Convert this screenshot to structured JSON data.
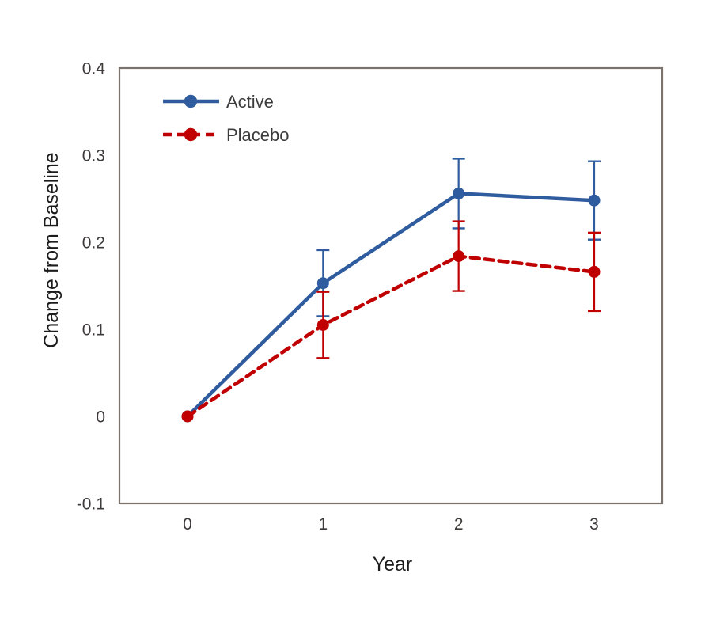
{
  "chart_data": {
    "type": "line",
    "title": "",
    "xlabel": "Year",
    "ylabel": "Change from Baseline",
    "x": [
      0,
      1,
      2,
      3
    ],
    "x_tick_labels": [
      "0",
      "1",
      "2",
      "3"
    ],
    "y_ticks": [
      -0.1,
      0,
      0.1,
      0.2,
      0.3,
      0.4
    ],
    "y_tick_labels": [
      "-0.1",
      "0",
      "0.1",
      "0.2",
      "0.3",
      "0.4"
    ],
    "ylim": [
      -0.1,
      0.4
    ],
    "grid": false,
    "legend_position": "top-left-inside",
    "series": [
      {
        "name": "Active",
        "color": "#2E5C9E",
        "line_style": "solid",
        "marker": "circle",
        "values": [
          0,
          0.153,
          0.256,
          0.248
        ],
        "errors": [
          0,
          0.038,
          0.04,
          0.045
        ]
      },
      {
        "name": "Placebo",
        "color": "#C00000",
        "line_style": "dashed",
        "marker": "circle",
        "values": [
          0,
          0.105,
          0.184,
          0.166
        ],
        "errors": [
          0,
          0.038,
          0.04,
          0.045
        ]
      }
    ],
    "frame_color": "#7B746E",
    "tick_text_color": "#3d3a39",
    "axis_title_color": "#1c1c1c"
  }
}
